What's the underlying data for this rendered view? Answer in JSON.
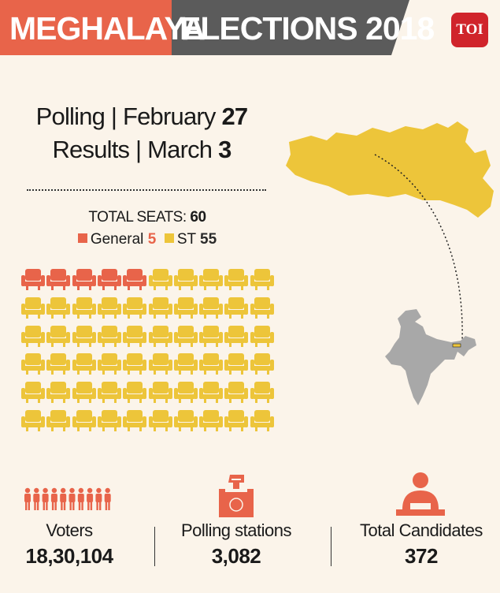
{
  "header": {
    "title_part1": "MEGHALAYA",
    "title_part2": "ELECTIONS 2018",
    "logo_text": "TOI"
  },
  "schedule": {
    "polling_label": "Polling | February ",
    "polling_day": "27",
    "results_label": "Results | March ",
    "results_day": "3"
  },
  "seats": {
    "total_label": "TOTAL SEATS: ",
    "total_value": "60",
    "general_label": "General ",
    "general_value": "5",
    "st_label": "ST ",
    "st_value": "55"
  },
  "seat_grid": {
    "columns": 10,
    "rows": 6,
    "general_count": 5
  },
  "stats": {
    "voters_label": "Voters",
    "voters_value": "18,30,104",
    "polling_stations_label": "Polling stations",
    "polling_stations_value": "3,082",
    "candidates_label": "Total Candidates",
    "candidates_value": "372"
  },
  "colors": {
    "accent_orange": "#e8644a",
    "st_yellow": "#edc53a",
    "banner_dark": "#5b5b5b",
    "toi_red": "#d0242b",
    "india_grey": "#a8a8a8"
  },
  "icons": [
    "people-icon",
    "ballot-box-icon",
    "candidate-icon",
    "meghalaya-map",
    "india-map"
  ]
}
